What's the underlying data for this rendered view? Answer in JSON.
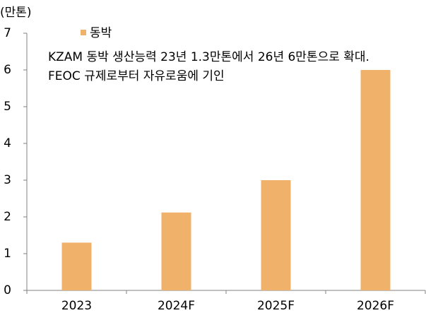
{
  "chart_data": {
    "type": "bar",
    "unit_label": "(만톤)",
    "annotations": [
      "KZAM 동박 생산능력 23년 1.3만톤에서 26년 6만톤으로 확대.",
      "FEOC 규제로부터 자유로움에 기인"
    ],
    "categories": [
      "2023",
      "2024F",
      "2025F",
      "2026F"
    ],
    "series": [
      {
        "name": "동박",
        "color": "#f0b26b",
        "values": [
          1.3,
          2.12,
          3.0,
          6.0
        ]
      }
    ],
    "ylim": [
      0,
      7
    ],
    "yticks": [
      0,
      1,
      2,
      3,
      4,
      5,
      6,
      7
    ],
    "grid": false,
    "legend": "top-left"
  }
}
